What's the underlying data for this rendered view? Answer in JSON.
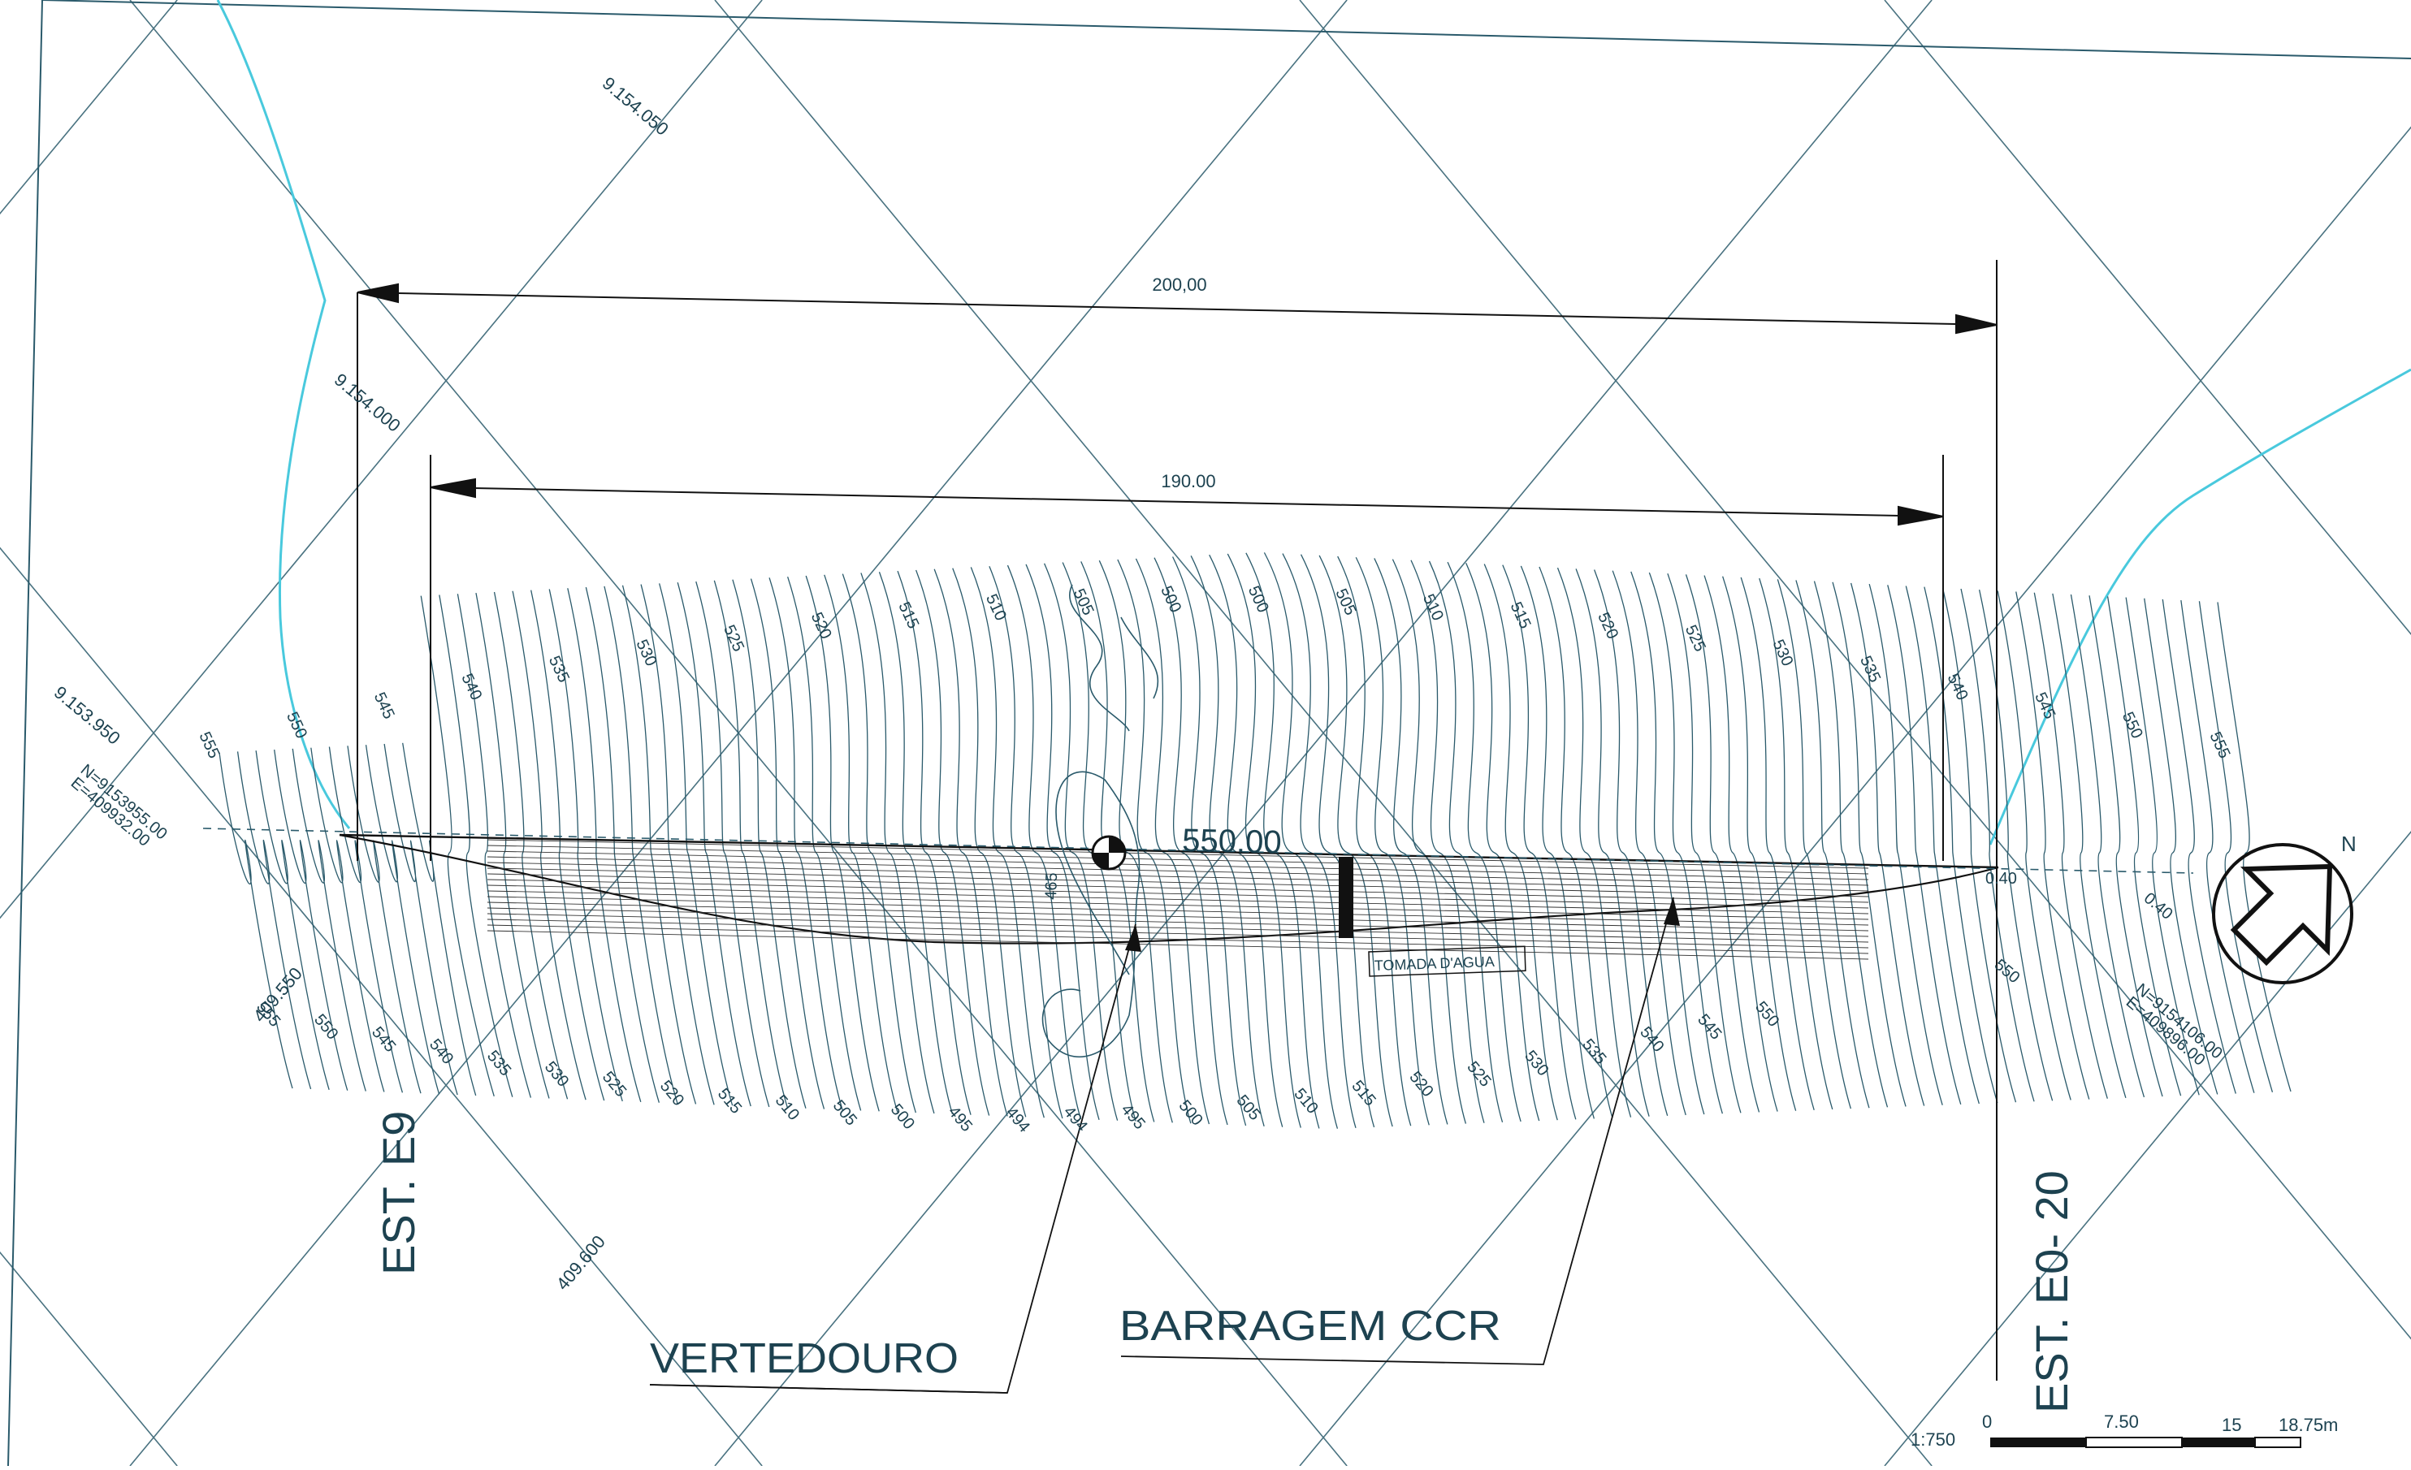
{
  "colors": {
    "ink": "#2a5a6b",
    "dark": "#111111",
    "water": "#49c9dd",
    "paper": "#ffffff"
  },
  "dimensions": {
    "outer": "200,00",
    "inner": "190.00"
  },
  "grid_labels": {
    "g1": "9.154.050",
    "g2": "9.154.000",
    "g3": "9.153.950",
    "g4": "409.550",
    "g5": "409.600"
  },
  "crest": "550.00",
  "intake": "TOMADA D'AGUA",
  "spillway": "VERTEDOURO",
  "dam": "BARRAGEM CCR",
  "stations": {
    "left": "EST. E9",
    "right": "EST. E0- 20"
  },
  "coords": {
    "left_n": "N=9153955.00",
    "left_e": "E=409932.00",
    "right_n": "N=9154106.00",
    "right_e": "E=409896.00"
  },
  "upper_contours": [
    "555",
    "550",
    "545",
    "540",
    "535",
    "530",
    "525",
    "520",
    "515",
    "510",
    "505",
    "500",
    "500",
    "505",
    "510",
    "515",
    "520",
    "525",
    "530",
    "535",
    "540",
    "545",
    "550",
    "555"
  ],
  "lower_contours": [
    "555",
    "550",
    "545",
    "540",
    "535",
    "530",
    "525",
    "520",
    "515",
    "510",
    "505",
    "500",
    "495",
    "494",
    "494",
    "495",
    "500",
    "505",
    "510",
    "515",
    "520",
    "525",
    "530",
    "535",
    "540",
    "545",
    "550"
  ],
  "misc": {
    "m1": "0.40",
    "m2": "0.40",
    "m3": "550",
    "m4": "465"
  },
  "scale": {
    "ratio": "1:750",
    "t0": "0",
    "t1": "7.50",
    "t2": "15",
    "t3": "18.75m"
  },
  "north": "N",
  "icons": {
    "north_arrow": "north-arrow-icon",
    "benchmark": "benchmark-icon"
  }
}
